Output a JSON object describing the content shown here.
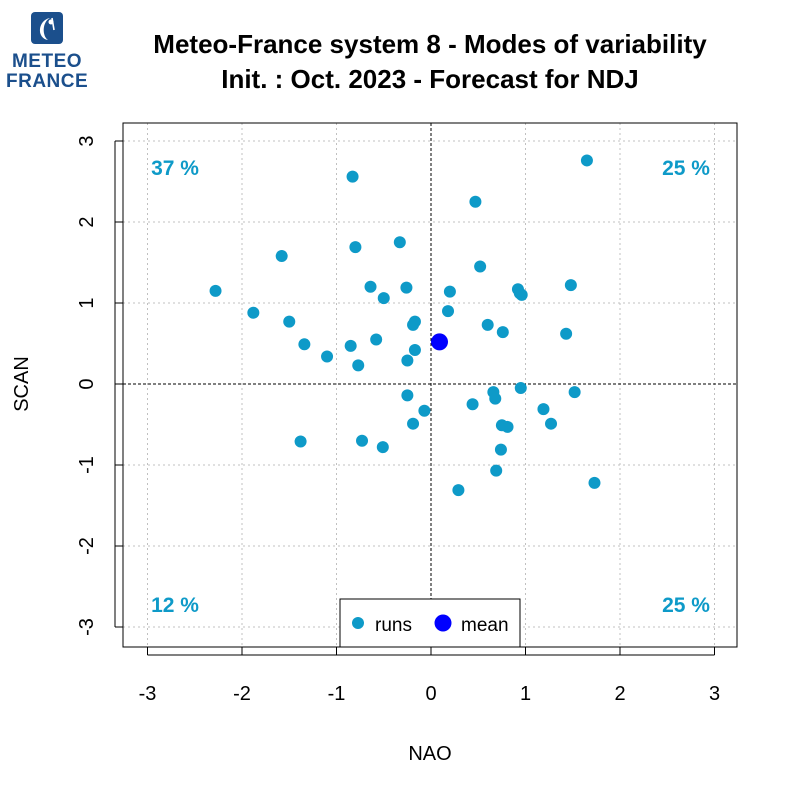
{
  "logo": {
    "line1": "METEO",
    "line2": "FRANCE",
    "icon": "meteo-france-logo-icon"
  },
  "title": {
    "line1": "Meteo-France system 8 - Modes of variability",
    "line2": "Init. : Oct. 2023 - Forecast for NDJ"
  },
  "chart_data": {
    "type": "scatter",
    "title": "Meteo-France system 8 - Modes of variability",
    "subtitle": "Init. : Oct. 2023 - Forecast for NDJ",
    "xlabel": "NAO",
    "ylabel": "SCAN",
    "xlim": [
      -3,
      3
    ],
    "ylim": [
      -3,
      3
    ],
    "xticks": [
      "-3",
      "-2",
      "-1",
      "0",
      "1",
      "2",
      "3"
    ],
    "yticks": [
      "-3",
      "-2",
      "-1",
      "0",
      "1",
      "2",
      "3"
    ],
    "grid": true,
    "zero_lines": true,
    "quadrant_labels": {
      "top_left": "37 %",
      "top_right": "25 %",
      "bottom_left": "12 %",
      "bottom_right": "25 %"
    },
    "legend": {
      "position": "bottom-center",
      "entries": [
        "runs",
        "mean"
      ]
    },
    "colors": {
      "runs": "#0e9ac8",
      "mean": "#0000ff",
      "quadrant_text": "#0e9ac8"
    },
    "series": [
      {
        "name": "runs",
        "points": [
          [
            1.65,
            2.76
          ],
          [
            -0.83,
            2.56
          ],
          [
            0.47,
            2.25
          ],
          [
            -0.33,
            1.75
          ],
          [
            -0.8,
            1.69
          ],
          [
            -1.58,
            1.58
          ],
          [
            0.52,
            1.45
          ],
          [
            -2.28,
            1.15
          ],
          [
            -0.64,
            1.2
          ],
          [
            -0.26,
            1.19
          ],
          [
            0.2,
            1.14
          ],
          [
            -0.5,
            1.06
          ],
          [
            0.92,
            1.17
          ],
          [
            0.96,
            1.1
          ],
          [
            0.94,
            1.12
          ],
          [
            1.48,
            1.22
          ],
          [
            -1.88,
            0.88
          ],
          [
            0.18,
            0.9
          ],
          [
            -1.5,
            0.77
          ],
          [
            -0.17,
            0.77
          ],
          [
            -0.19,
            0.73
          ],
          [
            0.6,
            0.73
          ],
          [
            0.76,
            0.64
          ],
          [
            1.43,
            0.62
          ],
          [
            -1.34,
            0.49
          ],
          [
            -0.58,
            0.55
          ],
          [
            -0.85,
            0.47
          ],
          [
            -1.1,
            0.34
          ],
          [
            -0.17,
            0.42
          ],
          [
            -0.25,
            0.29
          ],
          [
            -0.77,
            0.23
          ],
          [
            0.95,
            -0.05
          ],
          [
            1.52,
            -0.1
          ],
          [
            0.66,
            -0.1
          ],
          [
            0.68,
            -0.18
          ],
          [
            -0.25,
            -0.14
          ],
          [
            0.44,
            -0.25
          ],
          [
            -0.07,
            -0.33
          ],
          [
            1.19,
            -0.31
          ],
          [
            0.75,
            -0.51
          ],
          [
            0.81,
            -0.53
          ],
          [
            1.27,
            -0.49
          ],
          [
            -0.19,
            -0.49
          ],
          [
            -1.38,
            -0.71
          ],
          [
            -0.73,
            -0.7
          ],
          [
            -0.51,
            -0.78
          ],
          [
            0.74,
            -0.81
          ],
          [
            0.69,
            -1.07
          ],
          [
            1.73,
            -1.22
          ],
          [
            0.29,
            -1.31
          ]
        ]
      },
      {
        "name": "mean",
        "points": [
          [
            0.09,
            0.52
          ]
        ]
      }
    ]
  }
}
